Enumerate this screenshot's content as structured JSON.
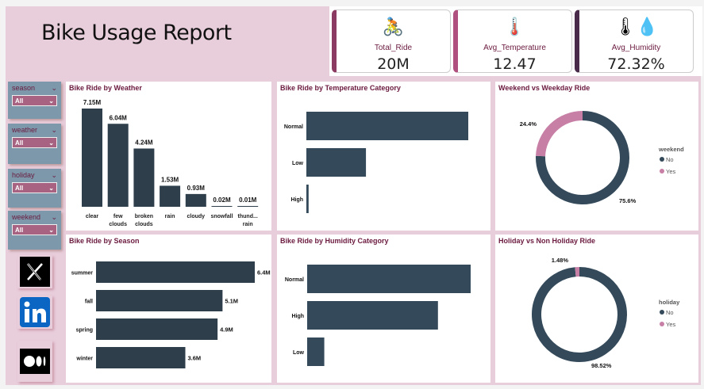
{
  "header": {
    "title": "Bike Usage Report"
  },
  "kpis": [
    {
      "label": "Total_Ride",
      "value": "20M",
      "icon": "bike-riders-icon",
      "accent": "#8b3a62"
    },
    {
      "label": "Avg_Temperature",
      "value": "12.47",
      "icon": "thermometer-sun-icon",
      "accent": "#b0507f"
    },
    {
      "label": "Avg_Humidity",
      "value": "72.32%",
      "icon": "thermometer-drop-icon",
      "accent": "#4a2a4a"
    }
  ],
  "slicers": [
    {
      "label": "season",
      "value": "All"
    },
    {
      "label": "weather",
      "value": "All"
    },
    {
      "label": "holiday",
      "value": "All"
    },
    {
      "label": "weekend",
      "value": "All"
    }
  ],
  "social": [
    "x-logo-icon",
    "linkedin-logo-icon",
    "medium-logo-icon"
  ],
  "chart_data": [
    {
      "id": "weather",
      "type": "bar",
      "title": "Bike Ride by Weather",
      "categories": [
        "clear",
        "few clouds",
        "broken clouds",
        "rain",
        "cloudy",
        "snowfall",
        "thund... rain"
      ],
      "values": [
        7.15,
        6.04,
        4.24,
        1.53,
        0.93,
        0.02,
        0.01
      ],
      "labels": [
        "7.15M",
        "6.04M",
        "4.24M",
        "1.53M",
        "0.93M",
        "0.02M",
        "0.01M"
      ],
      "color": "#2e3e4b"
    },
    {
      "id": "temperature",
      "type": "bar",
      "orientation": "horizontal",
      "title": "Bike Ride by Temperature Category",
      "categories": [
        "Normal",
        "Low",
        "High"
      ],
      "values": [
        14.4,
        5.3,
        0.2
      ],
      "color": "#344a5a"
    },
    {
      "id": "weekend",
      "type": "pie",
      "donut": true,
      "title": "Weekend vs Weekday Ride",
      "legend_title": "weekend",
      "categories": [
        "No",
        "Yes"
      ],
      "values": [
        75.6,
        24.4
      ],
      "labels": [
        "75.6%",
        "24.4%"
      ],
      "colors": [
        "#344a5a",
        "#c77fa6"
      ],
      "legend": "right"
    },
    {
      "id": "season",
      "type": "bar",
      "orientation": "horizontal",
      "title": "Bike Ride by Season",
      "categories": [
        "summer",
        "fall",
        "spring",
        "winter"
      ],
      "values": [
        6.4,
        5.1,
        4.9,
        3.6
      ],
      "labels": [
        "6.4M",
        "5.1M",
        "4.9M",
        "3.6M"
      ],
      "color": "#2e3e4b"
    },
    {
      "id": "humidity",
      "type": "bar",
      "orientation": "horizontal",
      "title": "Bike Ride by Humidity Category",
      "categories": [
        "Normal",
        "High",
        "Low"
      ],
      "values": [
        10.5,
        8.4,
        1.1
      ],
      "color": "#344a5a"
    },
    {
      "id": "holiday",
      "type": "pie",
      "donut": true,
      "title": "Holiday vs Non Holiday Ride",
      "legend_title": "holiday",
      "categories": [
        "No",
        "Yes"
      ],
      "values": [
        98.52,
        1.48
      ],
      "labels": [
        "98.52%",
        "1.48%"
      ],
      "colors": [
        "#344a5a",
        "#c77fa6"
      ],
      "legend": "right"
    }
  ]
}
